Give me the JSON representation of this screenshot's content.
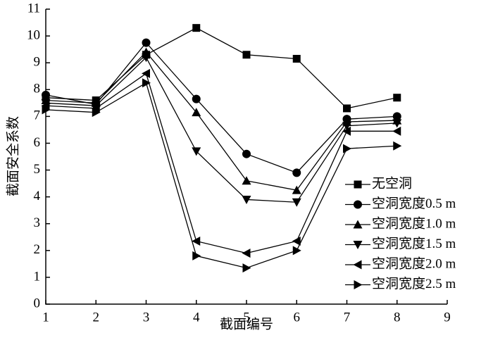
{
  "chart_data": {
    "type": "line",
    "xlabel": "截面编号",
    "ylabel": "截面安全系数",
    "x": [
      1,
      2,
      3,
      4,
      5,
      6,
      7,
      8
    ],
    "xlim": [
      1,
      9
    ],
    "xticks": [
      1,
      2,
      3,
      4,
      5,
      6,
      7,
      8,
      9
    ],
    "ylim": [
      0,
      11
    ],
    "yticks": [
      0,
      1,
      2,
      3,
      4,
      5,
      6,
      7,
      8,
      9,
      10,
      11
    ],
    "legend": "lower right",
    "series": [
      {
        "name": "无空洞",
        "color": "#000000",
        "marker": "square",
        "values": [
          7.7,
          7.6,
          9.3,
          10.3,
          9.3,
          9.15,
          7.3,
          7.7
        ]
      },
      {
        "name": "空洞宽度0.5 m",
        "color": "#000000",
        "marker": "circle",
        "values": [
          7.8,
          7.45,
          9.75,
          7.65,
          5.6,
          4.9,
          6.9,
          7.0
        ]
      },
      {
        "name": "空洞宽度1.0 m",
        "color": "#000000",
        "marker": "triangle-up",
        "values": [
          7.6,
          7.5,
          9.4,
          7.15,
          4.6,
          4.25,
          6.8,
          6.85
        ]
      },
      {
        "name": "空洞宽度1.5 m",
        "color": "#000000",
        "marker": "triangle-down",
        "values": [
          7.5,
          7.4,
          9.2,
          5.7,
          3.9,
          3.8,
          6.65,
          6.75
        ]
      },
      {
        "name": "空洞宽度2.0 m",
        "color": "#000000",
        "marker": "triangle-left",
        "values": [
          7.4,
          7.3,
          8.6,
          2.35,
          1.9,
          2.35,
          6.45,
          6.45
        ]
      },
      {
        "name": "空洞宽度2.5 m",
        "color": "#000000",
        "marker": "triangle-right",
        "values": [
          7.25,
          7.15,
          8.25,
          1.8,
          1.35,
          2.0,
          5.8,
          5.9
        ]
      }
    ]
  }
}
